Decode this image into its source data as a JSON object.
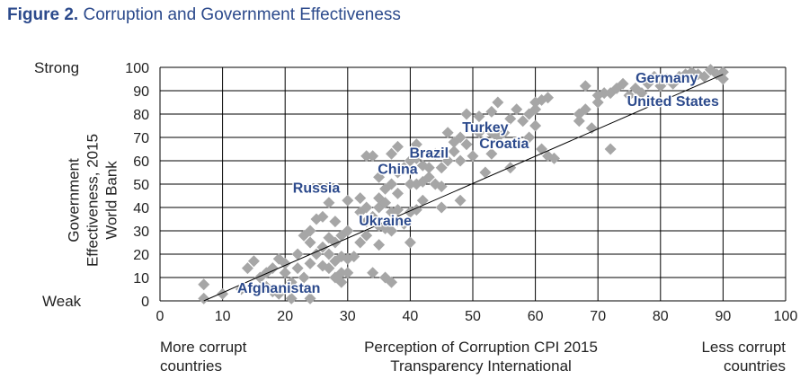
{
  "figure": {
    "number_label": "Figure 2.",
    "title": "Corruption and Government Effectiveness"
  },
  "colors": {
    "marker": "#a6a6a6",
    "label": "#2c4a8c",
    "grid": "#000000",
    "fit_line": "#000000"
  },
  "chart_data": {
    "type": "scatter",
    "xlabel": [
      "Perception of Corruption CPI 2015",
      "Transparency International"
    ],
    "ylabel": [
      "Government",
      "Effectiveness, 2015",
      "World Bank"
    ],
    "xlim": [
      0,
      100
    ],
    "ylim": [
      0,
      100
    ],
    "xticks": [
      0,
      10,
      20,
      30,
      40,
      50,
      60,
      70,
      80,
      90,
      100
    ],
    "yticks": [
      0,
      10,
      20,
      30,
      40,
      50,
      60,
      70,
      80,
      90,
      100
    ],
    "grid": true,
    "marker": "diamond",
    "y_end_labels": {
      "top": "Strong",
      "bottom": "Weak"
    },
    "x_end_labels": {
      "left": [
        "More corrupt",
        "countries"
      ],
      "right": [
        "Less corrupt",
        "countries"
      ]
    },
    "trend_line": {
      "from": [
        7,
        0
      ],
      "to": [
        90,
        97
      ]
    },
    "annotations": [
      {
        "text": "Germany",
        "x": 81,
        "y": 95
      },
      {
        "text": "United States",
        "x": 82,
        "y": 85
      },
      {
        "text": "Turkey",
        "x": 52,
        "y": 74
      },
      {
        "text": "Croatia",
        "x": 55,
        "y": 67
      },
      {
        "text": "Brazil",
        "x": 43,
        "y": 63
      },
      {
        "text": "China",
        "x": 38,
        "y": 56
      },
      {
        "text": "Russia",
        "x": 25,
        "y": 48
      },
      {
        "text": "Ukraine",
        "x": 36,
        "y": 34
      },
      {
        "text": "Afghanistan",
        "x": 19,
        "y": 5
      }
    ],
    "points": [
      [
        7,
        1
      ],
      [
        7,
        7
      ],
      [
        10,
        3
      ],
      [
        13,
        5
      ],
      [
        14,
        14
      ],
      [
        15,
        17
      ],
      [
        16,
        10
      ],
      [
        17,
        6
      ],
      [
        17,
        12
      ],
      [
        18,
        4
      ],
      [
        18,
        14
      ],
      [
        19,
        3
      ],
      [
        19,
        18
      ],
      [
        20,
        12
      ],
      [
        20,
        16
      ],
      [
        21,
        1
      ],
      [
        21,
        8
      ],
      [
        22,
        14
      ],
      [
        22,
        20
      ],
      [
        23,
        10
      ],
      [
        23,
        28
      ],
      [
        24,
        1
      ],
      [
        24,
        16
      ],
      [
        24,
        25
      ],
      [
        24,
        30
      ],
      [
        25,
        20
      ],
      [
        25,
        35
      ],
      [
        26,
        15
      ],
      [
        26,
        23
      ],
      [
        26,
        36
      ],
      [
        27,
        14
      ],
      [
        27,
        20
      ],
      [
        27,
        27
      ],
      [
        27,
        42
      ],
      [
        28,
        10
      ],
      [
        28,
        17
      ],
      [
        28,
        25
      ],
      [
        28,
        34
      ],
      [
        29,
        8
      ],
      [
        29,
        12
      ],
      [
        29,
        19
      ],
      [
        29,
        28
      ],
      [
        30,
        12
      ],
      [
        30,
        18
      ],
      [
        30,
        30
      ],
      [
        30,
        43
      ],
      [
        31,
        19
      ],
      [
        32,
        25
      ],
      [
        32,
        38
      ],
      [
        32,
        44
      ],
      [
        33,
        28
      ],
      [
        33,
        34
      ],
      [
        33,
        40
      ],
      [
        33,
        62
      ],
      [
        34,
        12
      ],
      [
        34,
        36
      ],
      [
        34,
        62
      ],
      [
        35,
        24
      ],
      [
        35,
        32
      ],
      [
        35,
        40
      ],
      [
        35,
        44
      ],
      [
        35,
        53
      ],
      [
        36,
        10
      ],
      [
        36,
        31
      ],
      [
        36,
        42
      ],
      [
        36,
        48
      ],
      [
        37,
        8
      ],
      [
        37,
        30
      ],
      [
        37,
        38
      ],
      [
        37,
        50
      ],
      [
        37,
        63
      ],
      [
        38,
        34
      ],
      [
        38,
        39
      ],
      [
        38,
        46
      ],
      [
        38,
        55
      ],
      [
        38,
        66
      ],
      [
        39,
        33
      ],
      [
        39,
        57
      ],
      [
        40,
        25
      ],
      [
        40,
        38
      ],
      [
        40,
        50
      ],
      [
        40,
        60
      ],
      [
        41,
        39
      ],
      [
        41,
        50
      ],
      [
        41,
        61
      ],
      [
        41,
        67
      ],
      [
        42,
        43
      ],
      [
        42,
        51
      ],
      [
        42,
        58
      ],
      [
        43,
        53
      ],
      [
        43,
        57
      ],
      [
        44,
        50
      ],
      [
        44,
        63
      ],
      [
        45,
        40
      ],
      [
        45,
        49
      ],
      [
        45,
        57
      ],
      [
        46,
        60
      ],
      [
        46,
        72
      ],
      [
        47,
        64
      ],
      [
        47,
        68
      ],
      [
        48,
        43
      ],
      [
        48,
        60
      ],
      [
        48,
        70
      ],
      [
        49,
        67
      ],
      [
        49,
        80
      ],
      [
        50,
        62
      ],
      [
        51,
        72
      ],
      [
        51,
        79
      ],
      [
        52,
        55
      ],
      [
        53,
        63
      ],
      [
        53,
        72
      ],
      [
        53,
        81
      ],
      [
        54,
        70
      ],
      [
        54,
        85
      ],
      [
        55,
        72
      ],
      [
        56,
        57
      ],
      [
        56,
        78
      ],
      [
        57,
        68
      ],
      [
        57,
        82
      ],
      [
        58,
        77
      ],
      [
        59,
        70
      ],
      [
        59,
        80
      ],
      [
        60,
        75
      ],
      [
        60,
        82
      ],
      [
        60,
        85
      ],
      [
        61,
        65
      ],
      [
        61,
        86
      ],
      [
        62,
        62
      ],
      [
        62,
        87
      ],
      [
        63,
        61
      ],
      [
        67,
        77
      ],
      [
        67,
        80
      ],
      [
        68,
        82
      ],
      [
        68,
        92
      ],
      [
        69,
        74
      ],
      [
        70,
        85
      ],
      [
        70,
        88
      ],
      [
        71,
        89
      ],
      [
        72,
        65
      ],
      [
        72,
        89
      ],
      [
        73,
        91
      ],
      [
        74,
        93
      ],
      [
        75,
        88
      ],
      [
        76,
        91
      ],
      [
        77,
        89
      ],
      [
        78,
        93
      ],
      [
        79,
        96
      ],
      [
        80,
        92
      ],
      [
        81,
        95
      ],
      [
        82,
        93
      ],
      [
        83,
        96
      ],
      [
        84,
        97
      ],
      [
        85,
        98
      ],
      [
        86,
        97
      ],
      [
        87,
        96
      ],
      [
        88,
        99
      ],
      [
        89,
        97
      ],
      [
        90,
        95
      ],
      [
        90,
        98
      ]
    ]
  }
}
